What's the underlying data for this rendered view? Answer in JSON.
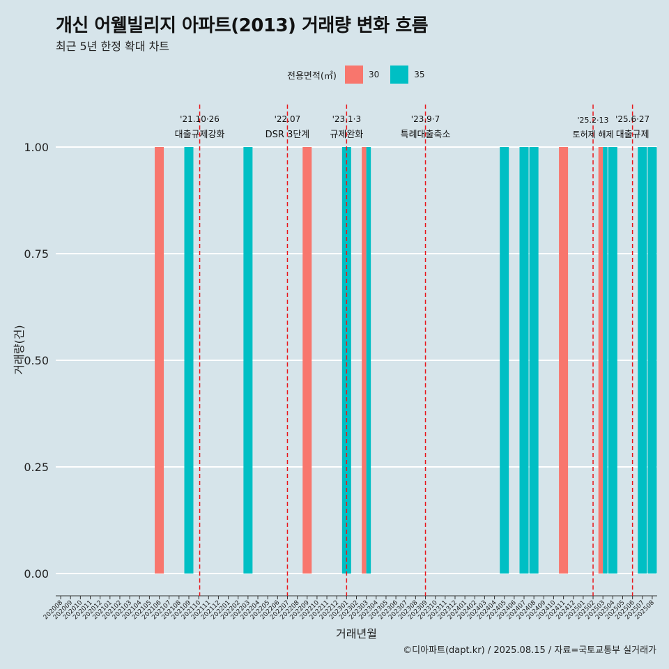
{
  "title": "개신 어웰빌리지 아파트(2013) 거래량 변화 흐름",
  "subtitle": "최근 5년 한정 확대 차트",
  "caption": "©디아파트(dapt.kr) / 2025.08.15 / 자료=국토교통부 실거래가",
  "legend": {
    "title": "전용면적(㎡)",
    "items": [
      {
        "label": "30",
        "color": "#f8766d"
      },
      {
        "label": "35",
        "color": "#00bfc4"
      }
    ]
  },
  "chart_data": {
    "type": "bar",
    "xlabel": "거래년월",
    "ylabel": "거래량(건)",
    "ylim": [
      0,
      1
    ],
    "yticks": [
      "0.00",
      "0.25",
      "0.50",
      "0.75",
      "1.00"
    ],
    "grid": true,
    "legend_position": "top",
    "categories": [
      "202008",
      "202009",
      "202010",
      "202011",
      "202012",
      "202101",
      "202102",
      "202103",
      "202104",
      "202105",
      "202106",
      "202107",
      "202108",
      "202109",
      "202110",
      "202111",
      "202112",
      "202201",
      "202202",
      "202203",
      "202204",
      "202205",
      "202206",
      "202207",
      "202208",
      "202209",
      "202210",
      "202211",
      "202212",
      "202301",
      "202302",
      "202303",
      "202304",
      "202305",
      "202306",
      "202307",
      "202308",
      "202309",
      "202310",
      "202311",
      "202312",
      "202401",
      "202402",
      "202403",
      "202404",
      "202405",
      "202406",
      "202407",
      "202408",
      "202409",
      "202410",
      "202411",
      "202412",
      "202501",
      "202502",
      "202503",
      "202504",
      "202505",
      "202506",
      "202507",
      "202508"
    ],
    "series": [
      {
        "name": "30",
        "color": "#f8766d",
        "points": [
          {
            "month": "202106",
            "value": 1
          },
          {
            "month": "202209",
            "value": 1
          },
          {
            "month": "202303",
            "value": 1
          },
          {
            "month": "202411",
            "value": 1
          },
          {
            "month": "202503",
            "value": 1
          }
        ]
      },
      {
        "name": "35",
        "color": "#00bfc4",
        "points": [
          {
            "month": "202109",
            "value": 1
          },
          {
            "month": "202203",
            "value": 1
          },
          {
            "month": "202301",
            "value": 1
          },
          {
            "month": "202303",
            "value": 1
          },
          {
            "month": "202405",
            "value": 1
          },
          {
            "month": "202407",
            "value": 1
          },
          {
            "month": "202408",
            "value": 1
          },
          {
            "month": "202503",
            "value": 1
          },
          {
            "month": "202504",
            "value": 1
          },
          {
            "month": "202507",
            "value": 1
          },
          {
            "month": "202508",
            "value": 1
          }
        ]
      }
    ],
    "events": [
      {
        "month": "202110",
        "offset": 0.1,
        "date": "'21.10·26",
        "label": "대출규제강화"
      },
      {
        "month": "202207",
        "offset": 0.0,
        "date": "'22.07",
        "label": "DSR 3단계"
      },
      {
        "month": "202301",
        "offset": 0.0,
        "date": "'23.1·3",
        "label": "규제완화"
      },
      {
        "month": "202309",
        "offset": 0.0,
        "date": "'23.9·7",
        "label": "특례대출축소"
      },
      {
        "month": "202502",
        "offset": 0.0,
        "date": "'25.2·13",
        "label": "토허제 해제"
      },
      {
        "month": "202506",
        "offset": 0.0,
        "date": "'25.6·27",
        "label": "대출규제"
      }
    ]
  }
}
